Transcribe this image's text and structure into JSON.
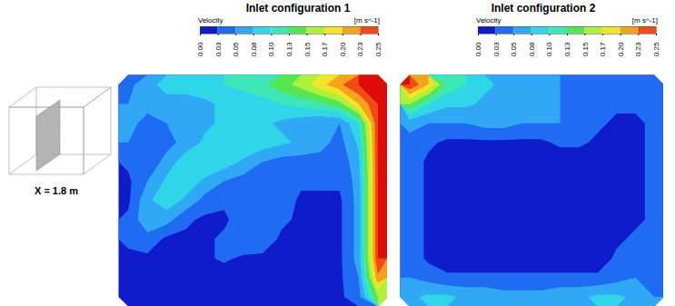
{
  "chart_data": [
    {
      "type": "heatmap",
      "title": "Inlet configuration 1",
      "annotation": "X = 1.8 m",
      "colorbar": {
        "title": "Velocity",
        "unit": "[m s^-1]",
        "range": [
          0,
          0.25
        ],
        "ticks": [
          {
            "value": 0,
            "label": "0.00"
          },
          {
            "value": 0.025,
            "label": "0.03"
          },
          {
            "value": 0.05,
            "label": "0.05"
          },
          {
            "value": 0.075,
            "label": "0.08"
          },
          {
            "value": 0.1,
            "label": "0.10"
          },
          {
            "value": 0.125,
            "label": "0.13"
          },
          {
            "value": 0.15,
            "label": "0.15"
          },
          {
            "value": 0.175,
            "label": "0.17"
          },
          {
            "value": 0.2,
            "label": "0.20"
          },
          {
            "value": 0.225,
            "label": "0.23"
          },
          {
            "value": 0.25,
            "label": "0.25"
          }
        ]
      },
      "cells": [
        [
          0.04,
          0.07,
          0.08,
          0.08,
          0.09,
          0.1,
          0.11,
          0.12,
          0.14,
          0.16,
          0.19,
          0.22,
          0.25,
          0.25
        ],
        [
          0.05,
          0.06,
          0.07,
          0.07,
          0.07,
          0.08,
          0.08,
          0.09,
          0.1,
          0.11,
          0.12,
          0.14,
          0.2,
          0.25
        ],
        [
          0.06,
          0.04,
          0.05,
          0.06,
          0.07,
          0.08,
          0.08,
          0.08,
          0.07,
          0.06,
          0.05,
          0.05,
          0.1,
          0.25
        ],
        [
          0.05,
          0.03,
          0.04,
          0.06,
          0.08,
          0.1,
          0.1,
          0.09,
          0.08,
          0.07,
          0.06,
          0.04,
          0.08,
          0.25
        ],
        [
          0.03,
          0.03,
          0.06,
          0.09,
          0.1,
          0.09,
          0.07,
          0.05,
          0.04,
          0.04,
          0.04,
          0.03,
          0.07,
          0.25
        ],
        [
          0.02,
          0.05,
          0.08,
          0.09,
          0.07,
          0.05,
          0.04,
          0.03,
          0.03,
          0.03,
          0.03,
          0.03,
          0.06,
          0.25
        ],
        [
          0.02,
          0.07,
          0.09,
          0.07,
          0.04,
          0.03,
          0.03,
          0.03,
          0.04,
          0.02,
          0.02,
          0.02,
          0.06,
          0.25
        ],
        [
          0.03,
          0.07,
          0.06,
          0.03,
          0.02,
          0.02,
          0.04,
          0.05,
          0.03,
          0.02,
          0.02,
          0.02,
          0.06,
          0.25
        ],
        [
          0.03,
          0.04,
          0.02,
          0.02,
          0.02,
          0.03,
          0.05,
          0.04,
          0.02,
          0.01,
          0.01,
          0.02,
          0.06,
          0.25
        ],
        [
          0.02,
          0.02,
          0.01,
          0.01,
          0.02,
          0.03,
          0.02,
          0.02,
          0.01,
          0.01,
          0.01,
          0.02,
          0.06,
          0.25
        ],
        [
          0.02,
          0.01,
          0.01,
          0.01,
          0.01,
          0.01,
          0.01,
          0.01,
          0.01,
          0.01,
          0.01,
          0.02,
          0.05,
          0.22
        ],
        [
          0.01,
          0.01,
          0.01,
          0.01,
          0.01,
          0.01,
          0.01,
          0.01,
          0.01,
          0.01,
          0.01,
          0.02,
          0.04,
          0.15
        ]
      ]
    },
    {
      "type": "heatmap",
      "title": "Inlet configuration 2",
      "colorbar": {
        "title": "Velocity",
        "unit": "[m s^-1]",
        "range": [
          0,
          0.25
        ],
        "ticks": [
          {
            "value": 0,
            "label": "0.00"
          },
          {
            "value": 0.025,
            "label": "0.03"
          },
          {
            "value": 0.05,
            "label": "0.05"
          },
          {
            "value": 0.075,
            "label": "0.08"
          },
          {
            "value": 0.1,
            "label": "0.10"
          },
          {
            "value": 0.125,
            "label": "0.13"
          },
          {
            "value": 0.15,
            "label": "0.15"
          },
          {
            "value": 0.175,
            "label": "0.17"
          },
          {
            "value": 0.2,
            "label": "0.20"
          },
          {
            "value": 0.225,
            "label": "0.23"
          },
          {
            "value": 0.25,
            "label": "0.25"
          }
        ]
      },
      "cells": [
        [
          0.25,
          0.2,
          0.12,
          0.1,
          0.08,
          0.07,
          0.06,
          0.05,
          0.05,
          0.04,
          0.04,
          0.03,
          0.03,
          0.03
        ],
        [
          0.15,
          0.1,
          0.08,
          0.08,
          0.07,
          0.07,
          0.06,
          0.05,
          0.05,
          0.04,
          0.03,
          0.03,
          0.03,
          0.03
        ],
        [
          0.06,
          0.05,
          0.05,
          0.05,
          0.06,
          0.06,
          0.05,
          0.05,
          0.05,
          0.04,
          0.03,
          0.02,
          0.02,
          0.03
        ],
        [
          0.04,
          0.03,
          0.02,
          0.02,
          0.02,
          0.02,
          0.02,
          0.02,
          0.03,
          0.03,
          0.02,
          0.01,
          0.02,
          0.03
        ],
        [
          0.04,
          0.02,
          0.01,
          0.01,
          0.01,
          0.01,
          0.01,
          0.01,
          0.01,
          0.01,
          0.01,
          0.01,
          0.02,
          0.03
        ],
        [
          0.04,
          0.02,
          0.01,
          0.01,
          0.01,
          0.01,
          0.01,
          0.01,
          0.01,
          0.01,
          0.01,
          0.01,
          0.02,
          0.03
        ],
        [
          0.04,
          0.02,
          0.01,
          0.01,
          0.01,
          0.01,
          0.01,
          0.01,
          0.01,
          0.01,
          0.01,
          0.01,
          0.02,
          0.03
        ],
        [
          0.04,
          0.02,
          0.01,
          0.01,
          0.01,
          0.01,
          0.01,
          0.01,
          0.01,
          0.01,
          0.01,
          0.01,
          0.02,
          0.03
        ],
        [
          0.04,
          0.02,
          0.01,
          0.01,
          0.01,
          0.01,
          0.01,
          0.01,
          0.01,
          0.01,
          0.01,
          0.02,
          0.03,
          0.03
        ],
        [
          0.04,
          0.02,
          0.01,
          0.01,
          0.01,
          0.01,
          0.01,
          0.01,
          0.01,
          0.01,
          0.01,
          0.03,
          0.04,
          0.03
        ],
        [
          0.05,
          0.04,
          0.03,
          0.03,
          0.03,
          0.03,
          0.03,
          0.03,
          0.03,
          0.03,
          0.03,
          0.04,
          0.05,
          0.04
        ],
        [
          0.07,
          0.08,
          0.08,
          0.07,
          0.07,
          0.06,
          0.06,
          0.06,
          0.07,
          0.07,
          0.08,
          0.08,
          0.07,
          0.05
        ]
      ]
    }
  ]
}
